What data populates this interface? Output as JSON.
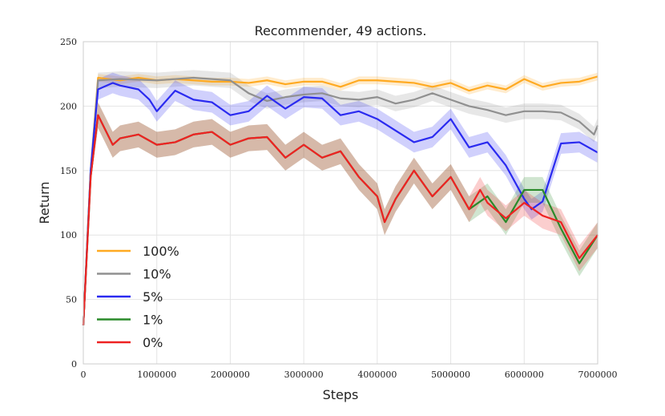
{
  "chart_data": {
    "type": "line",
    "title": "Recommender, 49 actions.",
    "xlabel": "Steps",
    "ylabel": "Return",
    "xlim": [
      0,
      7000000
    ],
    "ylim": [
      0,
      250
    ],
    "xticks": [
      0,
      1000000,
      2000000,
      3000000,
      4000000,
      5000000,
      6000000,
      7000000
    ],
    "xtick_labels": [
      "0",
      "1000000",
      "2000000",
      "3000000",
      "4000000",
      "5000000",
      "6000000",
      "7000000"
    ],
    "yticks": [
      0,
      50,
      100,
      150,
      200,
      250
    ],
    "ytick_labels": [
      "0",
      "50",
      "100",
      "150",
      "200",
      "250"
    ],
    "grid": true,
    "legend_position": "bottom-left",
    "series": [
      {
        "name": "100%",
        "color": "#ffaa22",
        "band": 3,
        "x": [
          0,
          100000,
          200000,
          500000,
          750000,
          1000000,
          1250000,
          1500000,
          1750000,
          2000000,
          2250000,
          2500000,
          2750000,
          3000000,
          3250000,
          3500000,
          3750000,
          4000000,
          4250000,
          4500000,
          4750000,
          5000000,
          5250000,
          5500000,
          5750000,
          6000000,
          6250000,
          6500000,
          6750000,
          7000000
        ],
        "y": [
          30,
          150,
          222,
          220,
          222,
          220,
          221,
          220,
          219,
          219,
          218,
          220,
          217,
          219,
          219,
          215,
          220,
          220,
          219,
          218,
          215,
          218,
          212,
          216,
          213,
          221,
          215,
          218,
          219,
          223
        ]
      },
      {
        "name": "10%",
        "color": "#909090",
        "band": 6,
        "x": [
          0,
          100000,
          200000,
          500000,
          1000000,
          1500000,
          1750000,
          2000000,
          2250000,
          2500000,
          2750000,
          3000000,
          3250000,
          3500000,
          3750000,
          4000000,
          4250000,
          4500000,
          4750000,
          5000000,
          5250000,
          5500000,
          5750000,
          6000000,
          6250000,
          6500000,
          6750000,
          6950000,
          7000000
        ],
        "y": [
          30,
          150,
          220,
          221,
          220,
          222,
          221,
          220,
          210,
          204,
          207,
          209,
          210,
          206,
          205,
          207,
          202,
          205,
          210,
          205,
          200,
          197,
          193,
          196,
          196,
          195,
          188,
          178,
          185
        ]
      },
      {
        "name": "5%",
        "color": "#2a2af0",
        "band": 8,
        "x": [
          0,
          100000,
          200000,
          400000,
          500000,
          750000,
          900000,
          1000000,
          1250000,
          1500000,
          1750000,
          2000000,
          2250000,
          2500000,
          2750000,
          3000000,
          3250000,
          3500000,
          3750000,
          4000000,
          4250000,
          4500000,
          4750000,
          5000000,
          5250000,
          5500000,
          5750000,
          6000000,
          6100000,
          6250000,
          6500000,
          6750000,
          7000000
        ],
        "y": [
          30,
          150,
          213,
          218,
          216,
          213,
          205,
          196,
          212,
          205,
          203,
          193,
          196,
          208,
          198,
          207,
          206,
          193,
          196,
          190,
          181,
          172,
          176,
          190,
          168,
          172,
          154,
          128,
          120,
          126,
          171,
          172,
          164
        ]
      },
      {
        "name": "1%",
        "color": "#2a8a2a",
        "band": 10,
        "x": [
          0,
          100000,
          200000,
          400000,
          500000,
          750000,
          1000000,
          1250000,
          1500000,
          1750000,
          2000000,
          2250000,
          2500000,
          2750000,
          3000000,
          3250000,
          3500000,
          3750000,
          4000000,
          4100000,
          4250000,
          4500000,
          4750000,
          5000000,
          5250000,
          5500000,
          5750000,
          6000000,
          6250000,
          6500000,
          6750000,
          7000000
        ],
        "y": [
          30,
          145,
          193,
          170,
          175,
          178,
          170,
          172,
          178,
          180,
          170,
          175,
          176,
          160,
          170,
          160,
          165,
          145,
          130,
          110,
          128,
          150,
          130,
          145,
          120,
          130,
          110,
          135,
          135,
          105,
          78,
          100
        ]
      },
      {
        "name": "0%",
        "color": "#ee2222",
        "band": 10,
        "x": [
          0,
          100000,
          200000,
          400000,
          500000,
          750000,
          1000000,
          1250000,
          1500000,
          1750000,
          2000000,
          2250000,
          2500000,
          2750000,
          3000000,
          3250000,
          3500000,
          3750000,
          4000000,
          4100000,
          4250000,
          4500000,
          4750000,
          5000000,
          5250000,
          5400000,
          5500000,
          5750000,
          6000000,
          6250000,
          6500000,
          6750000,
          7000000
        ],
        "y": [
          30,
          145,
          193,
          170,
          175,
          178,
          170,
          172,
          178,
          180,
          170,
          175,
          176,
          160,
          170,
          160,
          165,
          145,
          130,
          110,
          128,
          150,
          130,
          145,
          120,
          135,
          125,
          113,
          125,
          115,
          110,
          82,
          100
        ]
      }
    ]
  }
}
